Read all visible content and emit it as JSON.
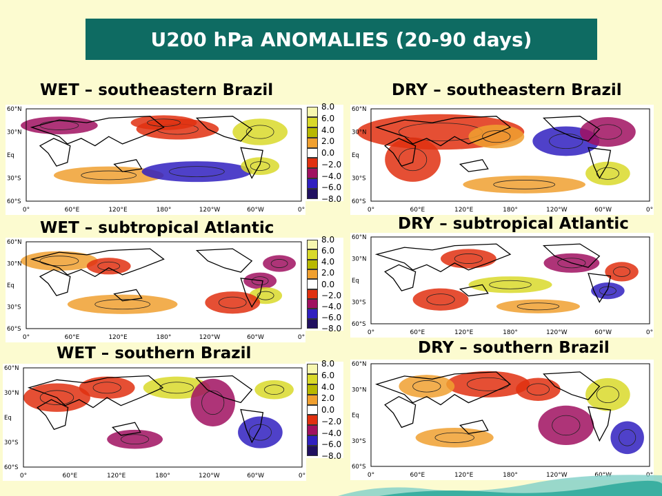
{
  "title": "U200 hPa ANOMALIES (20-90 days)",
  "panels": [
    {
      "id": "wet-se",
      "label": "WET – southeastern Brazil"
    },
    {
      "id": "dry-se",
      "label": "DRY – southeastern Brazil"
    },
    {
      "id": "wet-sa",
      "label": "WET – subtropical Atlantic"
    },
    {
      "id": "dry-sa",
      "label": "DRY – subtropical Atlantic"
    },
    {
      "id": "wet-sb",
      "label": "WET – southern Brazil"
    },
    {
      "id": "dry-sb",
      "label": "DRY – southern Brazil"
    }
  ],
  "lat_ticks": [
    "60°N",
    "30°N",
    "Eq",
    "30°S",
    "60°S"
  ],
  "lon_ticks": [
    "0°",
    "60°E",
    "120°E",
    "180°",
    "120°W",
    "60°W",
    "0°"
  ],
  "colorbar": {
    "ticks": [
      "8.0",
      "6.0",
      "4.0",
      "2.0",
      "0.0",
      "−2.0",
      "−4.0",
      "−6.0",
      "−8.0"
    ],
    "colors": [
      "#f7f7b0",
      "#d9d92a",
      "#b8b800",
      "#f0a030",
      "#ffffff",
      "#e03010",
      "#a01060",
      "#3020c0",
      "#201060"
    ]
  },
  "icon": "wave-decoration"
}
